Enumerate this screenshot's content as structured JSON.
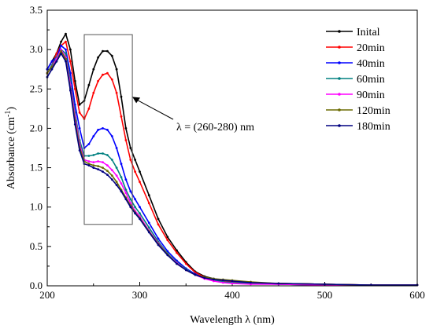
{
  "chart_data": {
    "type": "line",
    "title": "",
    "xlabel": "Wavelength λ (nm)",
    "ylabel": "Absorbance (cm",
    "ylabel_sup": "-1",
    "ylabel_tail": ")",
    "xlim": [
      200,
      600
    ],
    "ylim": [
      0,
      3.5
    ],
    "xticks": [
      "200",
      "300",
      "400",
      "500",
      "600"
    ],
    "yticks": [
      "0.0",
      "0.5",
      "1.0",
      "1.5",
      "2.0",
      "2.5",
      "3.0",
      "3.5"
    ],
    "grid": false,
    "legend_position": "top-right",
    "annotation": {
      "text": "λ =  (260-280) nm",
      "box_x": [
        240,
        292
      ],
      "box_y": [
        0.78,
        3.19
      ],
      "arrow_to": [
        292,
        2.4
      ]
    },
    "series": [
      {
        "name": "Inital",
        "color": "#000000",
        "x": [
          200,
          205,
          210,
          215,
          220,
          225,
          230,
          235,
          240,
          245,
          250,
          255,
          260,
          265,
          270,
          275,
          280,
          285,
          290,
          295,
          300,
          310,
          320,
          330,
          340,
          350,
          360,
          370,
          380,
          390,
          400,
          420,
          450,
          500,
          550,
          600
        ],
        "y": [
          2.75,
          2.85,
          2.95,
          3.1,
          3.2,
          3.0,
          2.6,
          2.3,
          2.35,
          2.55,
          2.75,
          2.9,
          2.98,
          2.98,
          2.92,
          2.75,
          2.4,
          2.0,
          1.75,
          1.6,
          1.45,
          1.15,
          0.85,
          0.62,
          0.45,
          0.3,
          0.18,
          0.12,
          0.09,
          0.07,
          0.05,
          0.04,
          0.03,
          0.02,
          0.01,
          0.01
        ]
      },
      {
        "name": "20min",
        "color": "#ff0000",
        "x": [
          200,
          205,
          210,
          215,
          220,
          225,
          230,
          235,
          240,
          245,
          250,
          255,
          260,
          265,
          270,
          275,
          280,
          285,
          290,
          295,
          300,
          310,
          320,
          330,
          340,
          350,
          360,
          370,
          380,
          390,
          400,
          420,
          450,
          500,
          550,
          600
        ],
        "y": [
          2.7,
          2.8,
          2.95,
          3.05,
          3.1,
          2.85,
          2.5,
          2.2,
          2.12,
          2.25,
          2.45,
          2.6,
          2.68,
          2.7,
          2.62,
          2.45,
          2.15,
          1.85,
          1.6,
          1.45,
          1.32,
          1.05,
          0.78,
          0.58,
          0.42,
          0.28,
          0.17,
          0.11,
          0.08,
          0.06,
          0.05,
          0.04,
          0.03,
          0.02,
          0.01,
          0.01
        ]
      },
      {
        "name": "40min",
        "color": "#0000ff",
        "x": [
          200,
          205,
          210,
          215,
          220,
          225,
          230,
          235,
          240,
          245,
          250,
          255,
          260,
          265,
          270,
          275,
          280,
          285,
          290,
          295,
          300,
          310,
          320,
          330,
          340,
          350,
          360,
          370,
          380,
          390,
          400,
          420,
          450,
          500,
          550,
          600
        ],
        "y": [
          2.75,
          2.85,
          2.9,
          3.05,
          3.0,
          2.7,
          2.3,
          2.0,
          1.75,
          1.8,
          1.9,
          1.98,
          2.0,
          1.98,
          1.9,
          1.75,
          1.55,
          1.35,
          1.2,
          1.1,
          1.0,
          0.8,
          0.6,
          0.44,
          0.32,
          0.22,
          0.15,
          0.1,
          0.07,
          0.05,
          0.04,
          0.03,
          0.02,
          0.01,
          0.01,
          0.01
        ]
      },
      {
        "name": "60min",
        "color": "#008080",
        "x": [
          200,
          205,
          210,
          215,
          220,
          225,
          230,
          235,
          240,
          245,
          250,
          255,
          260,
          265,
          270,
          275,
          280,
          285,
          290,
          295,
          300,
          310,
          320,
          330,
          340,
          350,
          360,
          370,
          380,
          390,
          400,
          420,
          450,
          500,
          550,
          600
        ],
        "y": [
          2.7,
          2.8,
          2.9,
          3.0,
          2.95,
          2.6,
          2.2,
          1.85,
          1.65,
          1.65,
          1.66,
          1.68,
          1.68,
          1.66,
          1.6,
          1.5,
          1.38,
          1.22,
          1.1,
          1.0,
          0.92,
          0.74,
          0.56,
          0.41,
          0.3,
          0.21,
          0.14,
          0.1,
          0.07,
          0.05,
          0.04,
          0.03,
          0.02,
          0.01,
          0.01,
          0.01
        ]
      },
      {
        "name": "90min",
        "color": "#ff00ff",
        "x": [
          200,
          205,
          210,
          215,
          220,
          225,
          230,
          235,
          240,
          245,
          250,
          255,
          260,
          265,
          270,
          275,
          280,
          285,
          290,
          295,
          300,
          310,
          320,
          330,
          340,
          350,
          360,
          370,
          380,
          390,
          400,
          420,
          450,
          500,
          550,
          600
        ],
        "y": [
          2.7,
          2.78,
          2.88,
          3.0,
          2.9,
          2.55,
          2.15,
          1.8,
          1.6,
          1.58,
          1.57,
          1.58,
          1.57,
          1.53,
          1.47,
          1.4,
          1.3,
          1.18,
          1.05,
          0.95,
          0.88,
          0.7,
          0.54,
          0.4,
          0.29,
          0.2,
          0.14,
          0.09,
          0.06,
          0.04,
          0.03,
          0.02,
          0.02,
          0.01,
          0.01,
          0.01
        ]
      },
      {
        "name": "120min",
        "color": "#6b6b00",
        "x": [
          200,
          205,
          210,
          215,
          220,
          225,
          230,
          235,
          240,
          245,
          250,
          255,
          260,
          265,
          270,
          275,
          280,
          285,
          290,
          295,
          300,
          310,
          320,
          330,
          340,
          350,
          360,
          370,
          380,
          390,
          400,
          420,
          450,
          500,
          550,
          600
        ],
        "y": [
          2.7,
          2.78,
          2.85,
          2.98,
          2.88,
          2.5,
          2.1,
          1.76,
          1.58,
          1.55,
          1.53,
          1.52,
          1.5,
          1.46,
          1.4,
          1.32,
          1.22,
          1.12,
          1.02,
          0.93,
          0.86,
          0.69,
          0.53,
          0.4,
          0.28,
          0.2,
          0.14,
          0.11,
          0.09,
          0.08,
          0.07,
          0.05,
          0.03,
          0.02,
          0.01,
          0.01
        ]
      },
      {
        "name": "180min",
        "color": "#000080",
        "x": [
          200,
          205,
          210,
          215,
          220,
          225,
          230,
          235,
          240,
          245,
          250,
          255,
          260,
          265,
          270,
          275,
          280,
          285,
          290,
          295,
          300,
          310,
          320,
          330,
          340,
          350,
          360,
          370,
          380,
          390,
          400,
          420,
          450,
          500,
          550,
          600
        ],
        "y": [
          2.65,
          2.75,
          2.85,
          2.95,
          2.85,
          2.48,
          2.05,
          1.72,
          1.55,
          1.53,
          1.5,
          1.48,
          1.45,
          1.41,
          1.35,
          1.28,
          1.2,
          1.1,
          1.0,
          0.92,
          0.85,
          0.68,
          0.52,
          0.39,
          0.28,
          0.2,
          0.14,
          0.1,
          0.08,
          0.07,
          0.06,
          0.04,
          0.03,
          0.02,
          0.01,
          0.01
        ]
      }
    ]
  }
}
